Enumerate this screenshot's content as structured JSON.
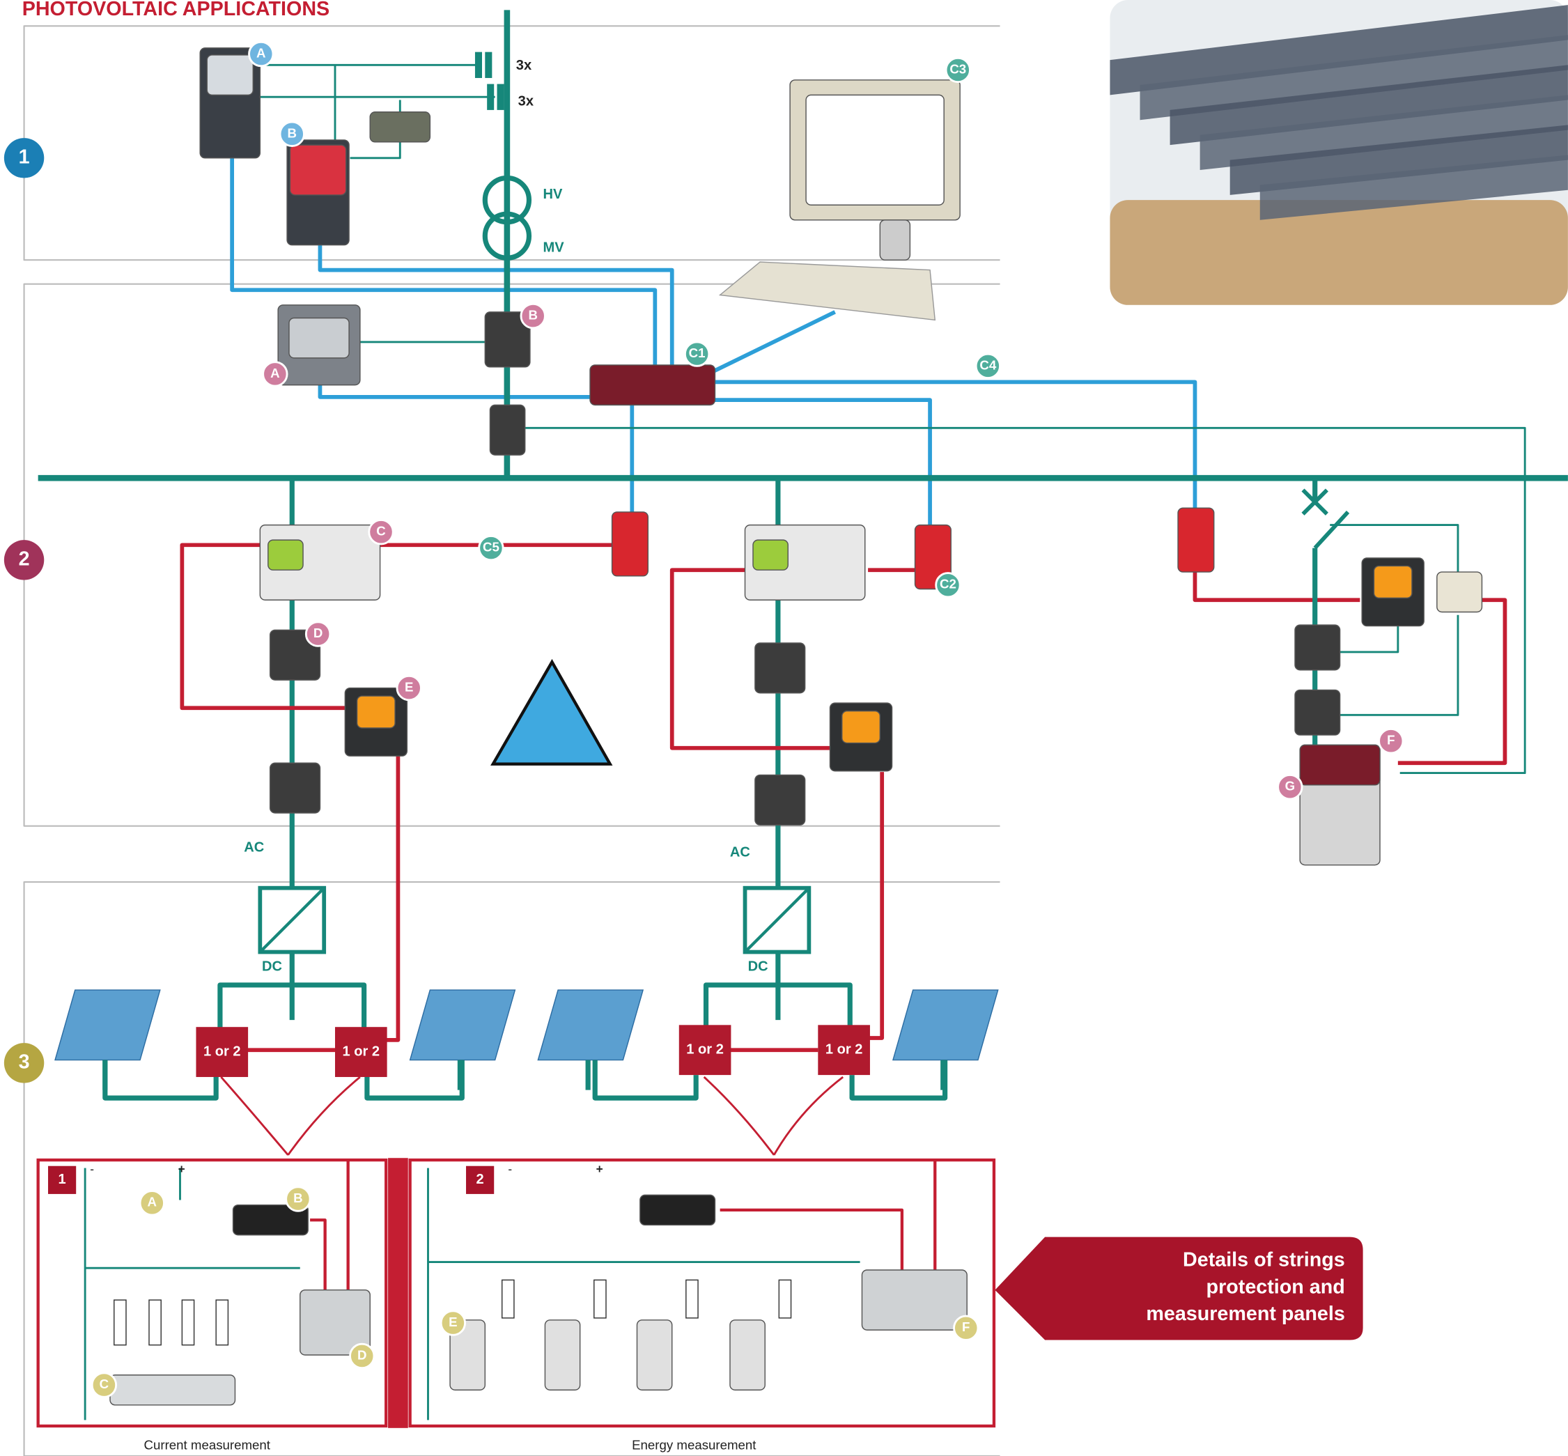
{
  "title": "PHOTOVOLTAIC APPLICATIONS",
  "sections": [
    "1",
    "2",
    "3"
  ],
  "transformer": {
    "multipliers": [
      "3x",
      "3x"
    ],
    "windings": [
      "HV",
      "MV"
    ]
  },
  "badges": {
    "section1": [
      "A",
      "B"
    ],
    "communication": [
      "C3",
      "C1",
      "C4",
      "C5",
      "C2"
    ],
    "section2": [
      "B",
      "A",
      "C",
      "D",
      "E",
      "F",
      "G"
    ],
    "panels": [
      "A",
      "B",
      "C",
      "D",
      "E",
      "F"
    ]
  },
  "conversion": {
    "ac": [
      "AC",
      "AC"
    ],
    "dc": [
      "DC",
      "DC"
    ]
  },
  "string_boxes": [
    "1 or 2",
    "1 or 2",
    "1 or 2",
    "1 or 2"
  ],
  "panels": [
    {
      "number": "1",
      "polarity": [
        "-",
        "+"
      ],
      "caption": "Current measurement"
    },
    {
      "number": "2",
      "polarity": [
        "-",
        "+"
      ],
      "caption": "Energy measurement"
    }
  ],
  "callout": [
    "Details of strings",
    "protection and",
    "measurement panels"
  ]
}
